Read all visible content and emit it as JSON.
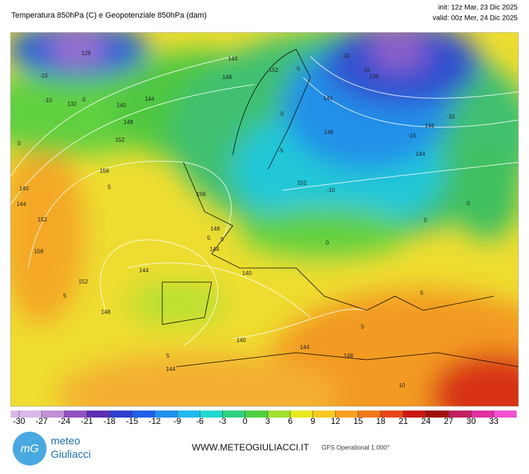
{
  "header": {
    "title": "Temperatura 850hPa (C) e Geopotenziale 850hPa (dam)",
    "init": "init: 12z Mar, 23 Dic 2025",
    "valid": "valid: 00z Mer, 24 Dic 2025"
  },
  "map": {
    "labels": [
      "128",
      "-15",
      "-10",
      "-5",
      "132",
      "140",
      "144",
      "148",
      "152",
      "0",
      "156",
      "5",
      "140",
      "144",
      "152",
      "156",
      "152",
      "148",
      "5",
      "144",
      "140",
      "5",
      "144",
      "140",
      "144",
      "148",
      "5",
      "144",
      "5",
      "5",
      "10",
      "0",
      "0",
      "0",
      "144",
      "146",
      "-15",
      "-10",
      "136",
      "-15",
      "-10",
      "-5",
      "0",
      "152",
      "-10",
      "148",
      "144",
      "148",
      "144",
      "152",
      "-5",
      "156",
      "148",
      "5"
    ]
  },
  "legend": {
    "ticks": [
      -30,
      -27,
      -24,
      -21,
      -18,
      -15,
      -12,
      -9,
      -6,
      -3,
      0,
      3,
      6,
      9,
      12,
      15,
      18,
      21,
      24,
      27,
      30,
      33
    ]
  },
  "footer": {
    "logo_text": "mG",
    "brand_line1": "meteo",
    "brand_line2": "Giuliacci",
    "website": "WWW.METEOGIULIACCI.IT",
    "model": "GFS Operational 1.000°"
  }
}
